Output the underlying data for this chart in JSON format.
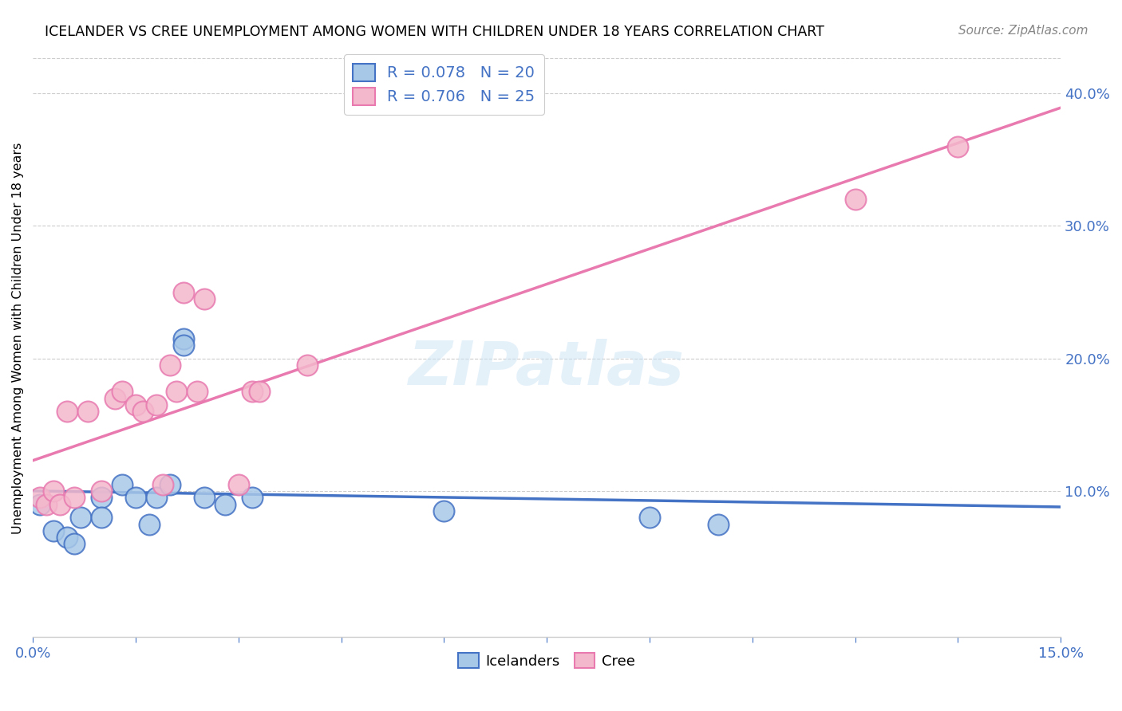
{
  "title": "ICELANDER VS CREE UNEMPLOYMENT AMONG WOMEN WITH CHILDREN UNDER 18 YEARS CORRELATION CHART",
  "source": "Source: ZipAtlas.com",
  "ylabel": "Unemployment Among Women with Children Under 18 years",
  "legend_label1": "Icelanders",
  "legend_label2": "Cree",
  "r1": 0.078,
  "n1": 20,
  "r2": 0.706,
  "n2": 25,
  "xlim": [
    0.0,
    0.15
  ],
  "ylim": [
    -0.01,
    0.44
  ],
  "x_ticks_labeled": [
    0.0,
    0.15
  ],
  "x_ticks_minor": [
    0.0,
    0.015,
    0.03,
    0.045,
    0.06,
    0.075,
    0.09,
    0.105,
    0.12,
    0.135,
    0.15
  ],
  "y_ticks_right": [
    0.1,
    0.2,
    0.3,
    0.4
  ],
  "color_blue": "#a8c8e8",
  "color_pink": "#f4b8cc",
  "line_blue": "#4472c4",
  "line_pink": "#e87ab0",
  "watermark": "ZIPatlas",
  "icelander_x": [
    0.001,
    0.003,
    0.005,
    0.006,
    0.007,
    0.01,
    0.01,
    0.013,
    0.015,
    0.017,
    0.018,
    0.02,
    0.022,
    0.022,
    0.025,
    0.028,
    0.032,
    0.06,
    0.09,
    0.1
  ],
  "icelander_y": [
    0.09,
    0.07,
    0.065,
    0.06,
    0.08,
    0.095,
    0.08,
    0.105,
    0.095,
    0.075,
    0.095,
    0.105,
    0.215,
    0.21,
    0.095,
    0.09,
    0.095,
    0.085,
    0.08,
    0.075
  ],
  "cree_x": [
    0.001,
    0.002,
    0.003,
    0.004,
    0.005,
    0.006,
    0.008,
    0.01,
    0.012,
    0.013,
    0.015,
    0.016,
    0.018,
    0.019,
    0.02,
    0.021,
    0.022,
    0.024,
    0.025,
    0.03,
    0.032,
    0.033,
    0.04,
    0.12,
    0.135
  ],
  "cree_y": [
    0.095,
    0.09,
    0.1,
    0.09,
    0.16,
    0.095,
    0.16,
    0.1,
    0.17,
    0.175,
    0.165,
    0.16,
    0.165,
    0.105,
    0.195,
    0.175,
    0.25,
    0.175,
    0.245,
    0.105,
    0.175,
    0.175,
    0.195,
    0.32,
    0.36
  ]
}
